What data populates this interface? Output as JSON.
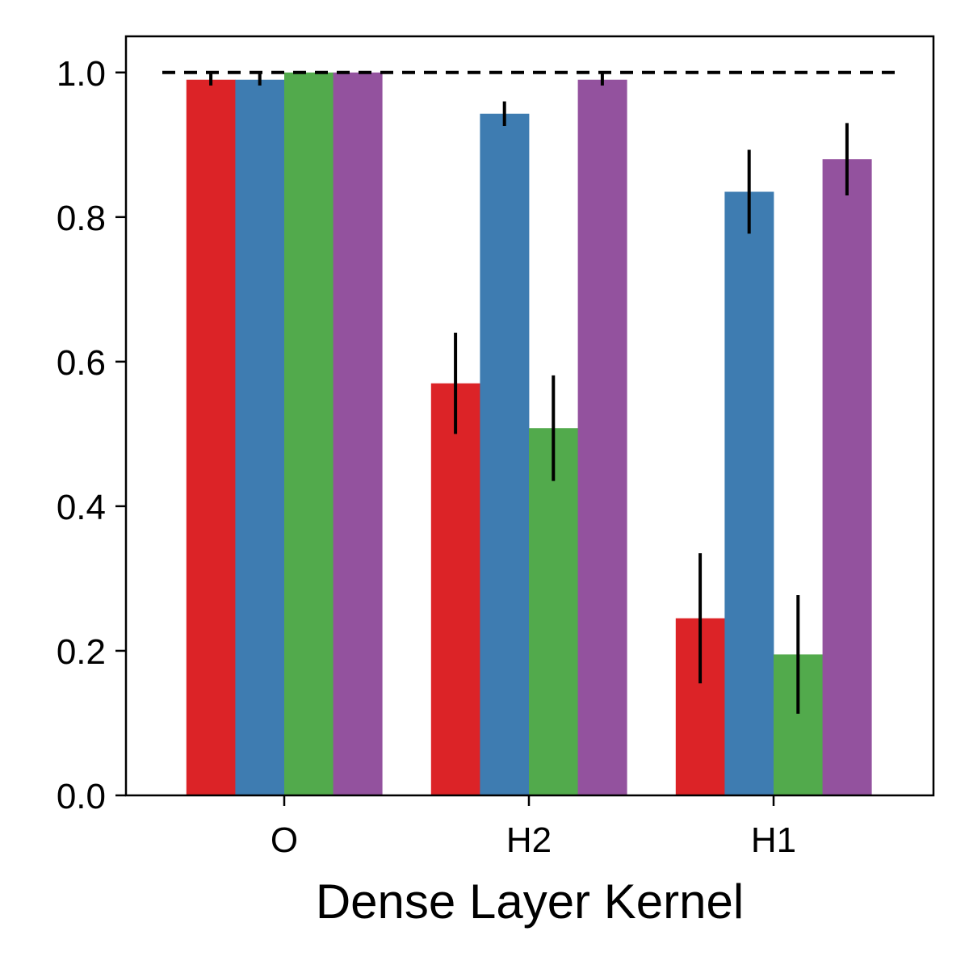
{
  "chart_data": {
    "type": "bar",
    "xlabel": "Dense Layer Kernel",
    "ylabel": "",
    "title": "",
    "categories": [
      "O",
      "H2",
      "H1"
    ],
    "ylim": [
      0,
      1.05
    ],
    "yticks": [
      "0.0",
      "0.2",
      "0.4",
      "0.6",
      "0.8",
      "1.0"
    ],
    "reference_line": 1.0,
    "legend": "none",
    "grid": false,
    "series": [
      {
        "color": "#dc2327",
        "values": [
          0.99,
          0.57,
          0.245
        ],
        "errors": [
          0.008,
          0.07,
          0.09
        ]
      },
      {
        "color": "#3e7cb1",
        "values": [
          0.99,
          0.943,
          0.835
        ],
        "errors": [
          0.008,
          0.017,
          0.058
        ]
      },
      {
        "color": "#52aa4c",
        "values": [
          1.0,
          0.508,
          0.195
        ],
        "errors": [
          0.0,
          0.073,
          0.082
        ]
      },
      {
        "color": "#93529e",
        "values": [
          1.0,
          0.99,
          0.88
        ],
        "errors": [
          0.0,
          0.008,
          0.05
        ]
      }
    ]
  }
}
